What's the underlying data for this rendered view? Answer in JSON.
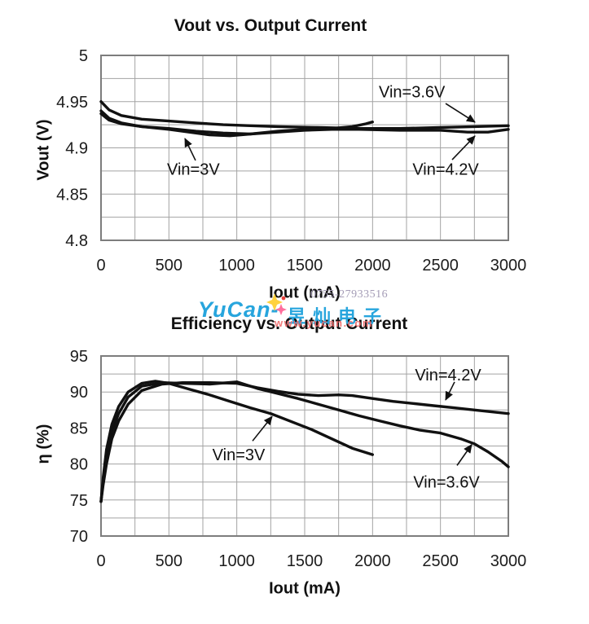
{
  "page": {
    "background": "#ffffff"
  },
  "watermark": {
    "phone": "0755-27933516",
    "brand_latin": "YuCan-",
    "brand_cjk": "昱灿电子",
    "url": "www.yucan.com",
    "blue": "#27a5dd",
    "phone_color": "#a49cb6",
    "url_color": "#ef6b6b",
    "sparkle_yellow": "#ffd23f",
    "sparkle_pink": "#ff6f9d",
    "sparkle_red": "#e8413c"
  },
  "style": {
    "curve_color": "#111111",
    "grid_color": "#a3a3a3",
    "border_color": "#7d7d7d",
    "text_color": "#1c1c1c"
  },
  "chart_data": [
    {
      "id": "vout",
      "type": "line",
      "title": "Vout vs. Output Current",
      "xlabel": "Iout (mA)",
      "ylabel": "Vout (V)",
      "xlim": [
        0,
        3000
      ],
      "ylim": [
        4.8,
        5.0
      ],
      "grid": true,
      "legend_position": "none",
      "xticks": {
        "values": [
          0,
          500,
          1000,
          1500,
          2000,
          2500,
          3000
        ],
        "labels": [
          "0",
          "500",
          "1000",
          "1500",
          "2000",
          "2500",
          "3000"
        ]
      },
      "yticks": {
        "values": [
          5.0,
          4.95,
          4.9,
          4.85,
          4.8
        ],
        "labels": [
          "5",
          "4.95",
          "4.9",
          "4.85",
          "4.8"
        ]
      },
      "minor_grid": {
        "x_step": 250,
        "y_step": 0.025
      },
      "series": [
        {
          "name": "Vin=3.6V",
          "points": [
            [
              0,
              4.95
            ],
            [
              60,
              4.941
            ],
            [
              150,
              4.935
            ],
            [
              300,
              4.931
            ],
            [
              500,
              4.929
            ],
            [
              700,
              4.927
            ],
            [
              900,
              4.925
            ],
            [
              1100,
              4.924
            ],
            [
              1300,
              4.923
            ],
            [
              1600,
              4.922
            ],
            [
              1900,
              4.921
            ],
            [
              2200,
              4.921
            ],
            [
              2500,
              4.922
            ],
            [
              2750,
              4.923
            ],
            [
              3000,
              4.924
            ]
          ]
        },
        {
          "name": "Vin=4.2V",
          "points": [
            [
              0,
              4.937
            ],
            [
              60,
              4.93
            ],
            [
              150,
              4.926
            ],
            [
              300,
              4.923
            ],
            [
              500,
              4.921
            ],
            [
              700,
              4.918
            ],
            [
              900,
              4.916
            ],
            [
              1100,
              4.915
            ],
            [
              1300,
              4.917
            ],
            [
              1500,
              4.919
            ],
            [
              1700,
              4.92
            ],
            [
              1900,
              4.92
            ],
            [
              2200,
              4.919
            ],
            [
              2500,
              4.919
            ],
            [
              2700,
              4.917
            ],
            [
              2850,
              4.917
            ],
            [
              3000,
              4.92
            ]
          ]
        },
        {
          "name": "Vin=3V",
          "points": [
            [
              0,
              4.94
            ],
            [
              60,
              4.932
            ],
            [
              150,
              4.927
            ],
            [
              300,
              4.923
            ],
            [
              500,
              4.92
            ],
            [
              650,
              4.917
            ],
            [
              800,
              4.914
            ],
            [
              950,
              4.913
            ],
            [
              1100,
              4.915
            ],
            [
              1300,
              4.918
            ],
            [
              1500,
              4.92
            ],
            [
              1700,
              4.921
            ],
            [
              1850,
              4.923
            ],
            [
              1950,
              4.926
            ],
            [
              2000,
              4.928
            ]
          ]
        }
      ],
      "annotations": [
        {
          "text": "Vin=3.6V",
          "text_at": [
            2290,
            4.961
          ],
          "arrow_from": [
            2538,
            4.948
          ],
          "arrow_to": [
            2754,
            4.9278
          ]
        },
        {
          "text": "Vin=3V",
          "text_at": [
            680,
            4.877
          ],
          "arrow_from": [
            696,
            4.8864
          ],
          "arrow_to": [
            618,
            4.9101
          ]
        },
        {
          "text": "Vin=4.2V",
          "text_at": [
            2538,
            4.877
          ],
          "arrow_from": [
            2586,
            4.8872
          ],
          "arrow_to": [
            2754,
            4.9128
          ]
        }
      ]
    },
    {
      "id": "eff",
      "type": "line",
      "title": "Efficiency vs. Output Current",
      "xlabel": "Iout (mA)",
      "ylabel": "η (%)",
      "xlim": [
        0,
        3000
      ],
      "ylim": [
        70,
        95
      ],
      "grid": true,
      "legend_position": "none",
      "xticks": {
        "values": [
          0,
          500,
          1000,
          1500,
          2000,
          2500,
          3000
        ],
        "labels": [
          "0",
          "500",
          "1000",
          "1500",
          "2000",
          "2500",
          "3000"
        ]
      },
      "yticks": {
        "values": [
          95,
          90,
          85,
          80,
          75,
          70
        ],
        "labels": [
          "95",
          "90",
          "85",
          "80",
          "75",
          "70"
        ]
      },
      "minor_grid": {
        "x_step": 250,
        "y_step": 2.5
      },
      "series": [
        {
          "name": "Vin=4.2V",
          "points": [
            [
              0,
              74.8
            ],
            [
              15,
              77.0
            ],
            [
              40,
              80.0
            ],
            [
              80,
              83.5
            ],
            [
              130,
              86.0
            ],
            [
              200,
              88.3
            ],
            [
              300,
              90.2
            ],
            [
              450,
              91.1
            ],
            [
              600,
              91.3
            ],
            [
              800,
              91.3
            ],
            [
              1000,
              91.2
            ],
            [
              1150,
              90.6
            ],
            [
              1300,
              90.1
            ],
            [
              1450,
              89.7
            ],
            [
              1600,
              89.5
            ],
            [
              1750,
              89.6
            ],
            [
              1850,
              89.5
            ],
            [
              2000,
              89.1
            ],
            [
              2150,
              88.7
            ],
            [
              2300,
              88.4
            ],
            [
              2450,
              88.1
            ],
            [
              2600,
              87.8
            ],
            [
              2800,
              87.4
            ],
            [
              3000,
              87.0
            ]
          ]
        },
        {
          "name": "Vin=3.6V",
          "points": [
            [
              0,
              74.8
            ],
            [
              15,
              77.5
            ],
            [
              40,
              81.0
            ],
            [
              80,
              84.5
            ],
            [
              130,
              87.0
            ],
            [
              200,
              89.3
            ],
            [
              300,
              90.8
            ],
            [
              450,
              91.3
            ],
            [
              600,
              91.2
            ],
            [
              800,
              91.1
            ],
            [
              1000,
              91.4
            ],
            [
              1150,
              90.5
            ],
            [
              1300,
              89.8
            ],
            [
              1450,
              89.1
            ],
            [
              1600,
              88.3
            ],
            [
              1750,
              87.5
            ],
            [
              1900,
              86.7
            ],
            [
              2050,
              86.0
            ],
            [
              2200,
              85.3
            ],
            [
              2350,
              84.7
            ],
            [
              2500,
              84.3
            ],
            [
              2650,
              83.5
            ],
            [
              2750,
              82.8
            ],
            [
              2850,
              81.7
            ],
            [
              2950,
              80.4
            ],
            [
              3000,
              79.6
            ]
          ]
        },
        {
          "name": "Vin=3V",
          "points": [
            [
              0,
              74.8
            ],
            [
              15,
              78.0
            ],
            [
              40,
              82.0
            ],
            [
              80,
              85.5
            ],
            [
              130,
              88.0
            ],
            [
              200,
              90.0
            ],
            [
              300,
              91.2
            ],
            [
              400,
              91.5
            ],
            [
              500,
              91.2
            ],
            [
              650,
              90.4
            ],
            [
              800,
              89.6
            ],
            [
              950,
              88.7
            ],
            [
              1100,
              87.8
            ],
            [
              1250,
              87.0
            ],
            [
              1400,
              85.9
            ],
            [
              1550,
              84.8
            ],
            [
              1700,
              83.5
            ],
            [
              1850,
              82.2
            ],
            [
              1950,
              81.6
            ],
            [
              2000,
              81.3
            ]
          ]
        }
      ],
      "annotations": [
        {
          "text": "Vin=4.2V",
          "text_at": [
            2556,
            92.4
          ],
          "arrow_from": [
            2604,
            91.4
          ],
          "arrow_to": [
            2538,
            88.9
          ]
        },
        {
          "text": "Vin=3V",
          "text_at": [
            1014,
            81.3
          ],
          "arrow_from": [
            1116,
            83.2
          ],
          "arrow_to": [
            1260,
            86.6
          ]
        },
        {
          "text": "Vin=3.6V",
          "text_at": [
            2544,
            77.5
          ],
          "arrow_from": [
            2622,
            79.8
          ],
          "arrow_to": [
            2730,
            82.7
          ]
        }
      ]
    }
  ]
}
